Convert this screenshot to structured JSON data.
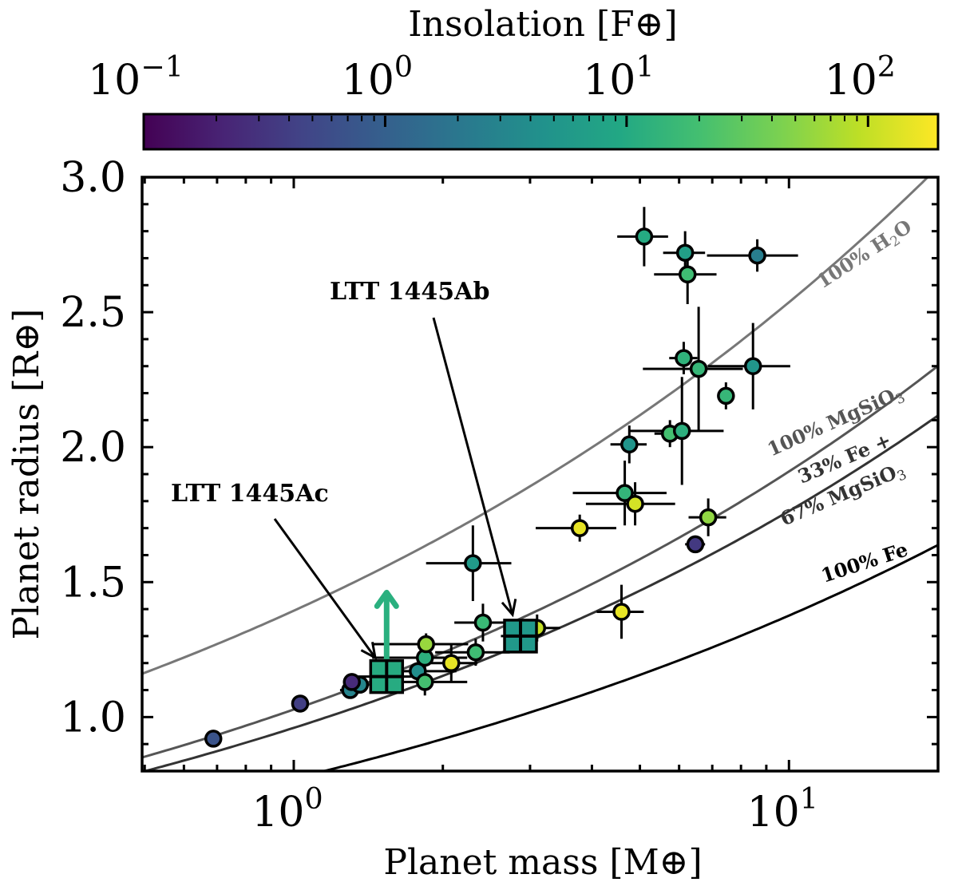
{
  "chart_data": {
    "type": "scatter",
    "xlabel": "Planet mass [M⊕]",
    "ylabel": "Planet radius [R⊕]",
    "xscale": "log",
    "xlim": [
      0.494,
      20.0
    ],
    "ylim": [
      0.8,
      3.0
    ],
    "x_ticks": [
      {
        "value": 1,
        "label_base": "10",
        "label_exp": "0"
      },
      {
        "value": 10,
        "label_base": "10",
        "label_exp": "1"
      }
    ],
    "y_ticks": [
      {
        "value": 1.0,
        "label": "1.0"
      },
      {
        "value": 1.5,
        "label": "1.5"
      },
      {
        "value": 2.0,
        "label": "2.0"
      },
      {
        "value": 2.5,
        "label": "2.5"
      },
      {
        "value": 3.0,
        "label": "3.0"
      }
    ],
    "colorbar": {
      "label": "Insolation [F⊕]",
      "scale": "log",
      "colormap": "viridis",
      "range": [
        0.1,
        195
      ],
      "ticks": [
        {
          "value": 0.1,
          "label_base": "10",
          "label_exp": "−1"
        },
        {
          "value": 1,
          "label_base": "10",
          "label_exp": "0"
        },
        {
          "value": 10,
          "label_base": "10",
          "label_exp": "1"
        },
        {
          "value": 100,
          "label_base": "10",
          "label_exp": "2"
        }
      ]
    },
    "composition_curves": [
      {
        "name": "100% H2O",
        "label": "100% H",
        "label_sub": "2",
        "label_tail": "O",
        "a": 1.394,
        "b": 0.26,
        "color": "#777777"
      },
      {
        "name": "100% MgSiO3",
        "label": "100% MgSiO",
        "label_sub": "3",
        "label_tail": "",
        "a": 1.028,
        "b": 0.269,
        "color": "#555555"
      },
      {
        "name": "33% Fe + 67% MgSiO3",
        "label": "33% Fe +",
        "label2": "67% MgSiO",
        "label2_sub": "3",
        "a": 0.96,
        "b": 0.264,
        "color": "#333333"
      },
      {
        "name": "100% Fe",
        "label": "100% Fe",
        "a": 0.772,
        "b": 0.251,
        "color": "#000000"
      }
    ],
    "points": [
      {
        "mass": 0.688,
        "radius": 0.92,
        "insolation": 0.7
      },
      {
        "mass": 1.03,
        "radius": 1.05,
        "insolation": 0.4
      },
      {
        "mass": 1.3,
        "radius": 1.1,
        "insolation": 3.0,
        "mass_err": 0.06,
        "radius_err": 0.02
      },
      {
        "mass": 1.36,
        "radius": 1.12,
        "insolation": 3.2,
        "mass_err": 0.06,
        "radius_err": 0.02
      },
      {
        "mass": 1.31,
        "radius": 1.13,
        "insolation": 0.25,
        "mass_err": 0.05,
        "radius_err": 0.02
      },
      {
        "mass": 1.78,
        "radius": 1.17,
        "insolation": 4.0,
        "mass_err": 0.35,
        "radius_err": 0.03
      },
      {
        "mass": 1.84,
        "radius": 1.22,
        "insolation": 12.0,
        "mass_err": 0.4,
        "radius_err": 0.04
      },
      {
        "mass": 1.85,
        "radius": 1.27,
        "insolation": 60.0,
        "mass_err": 0.4,
        "radius_err": 0.04
      },
      {
        "mass": 1.84,
        "radius": 1.13,
        "insolation": 20.0,
        "mass_err": 0.4,
        "radius_err": 0.05
      },
      {
        "mass": 2.08,
        "radius": 1.2,
        "insolation": 150.0,
        "mass_err": 0.27,
        "radius_err": 0.07
      },
      {
        "mass": 2.33,
        "radius": 1.24,
        "insolation": 18.0,
        "mass_err": 0.4,
        "radius_err": 0.05
      },
      {
        "mass": 2.41,
        "radius": 1.35,
        "insolation": 16.0,
        "mass_err": 0.3,
        "radius_err": 0.07
      },
      {
        "mass": 2.3,
        "radius": 1.57,
        "insolation": 6.0,
        "mass_err": 0.45,
        "radius_err": 0.14
      },
      {
        "mass": 3.1,
        "radius": 1.33,
        "insolation": 100.0,
        "mass_err": 0.35,
        "radius_err": 0.05
      },
      {
        "mass": 3.78,
        "radius": 1.7,
        "insolation": 150.0,
        "mass_err": 0.7,
        "radius_err": 0.05
      },
      {
        "mass": 4.59,
        "radius": 1.39,
        "insolation": 150.0,
        "mass_err": 0.5,
        "radius_err": 0.1
      },
      {
        "mass": 4.66,
        "radius": 1.83,
        "insolation": 14.0,
        "mass_err": 1.0,
        "radius_err": 0.12
      },
      {
        "mass": 4.89,
        "radius": 1.79,
        "insolation": 120.0,
        "mass_err": 1.0,
        "radius_err": 0.08
      },
      {
        "mass": 4.76,
        "radius": 2.01,
        "insolation": 5.0,
        "mass_err": 0.4,
        "radius_err": 0.07
      },
      {
        "mass": 5.1,
        "radius": 2.78,
        "insolation": 10.0,
        "mass_err": 0.6,
        "radius_err": 0.11
      },
      {
        "mass": 5.75,
        "radius": 2.05,
        "insolation": 20.0,
        "mass_err": 0.4,
        "radius_err": 0.05
      },
      {
        "mass": 6.08,
        "radius": 2.06,
        "insolation": 12.0,
        "mass_err": 1.3,
        "radius_err": 0.2
      },
      {
        "mass": 6.13,
        "radius": 2.33,
        "insolation": 13.0,
        "mass_err": 0.4,
        "radius_err": 0.06
      },
      {
        "mass": 6.57,
        "radius": 2.29,
        "insolation": 15.0,
        "mass_err": 1.5,
        "radius_err": 0.23
      },
      {
        "mass": 7.46,
        "radius": 2.19,
        "insolation": 15.0,
        "mass_err": 0.1,
        "radius_err": 0.05
      },
      {
        "mass": 8.46,
        "radius": 2.3,
        "insolation": 5.0,
        "mass_err": 1.6,
        "radius_err": 0.16
      },
      {
        "mass": 6.17,
        "radius": 2.72,
        "insolation": 7.0,
        "mass_err": 0.6,
        "radius_err": 0.08
      },
      {
        "mass": 6.24,
        "radius": 2.64,
        "insolation": 18.0,
        "mass_err": 0.9,
        "radius_err": 0.11
      },
      {
        "mass": 8.63,
        "radius": 2.71,
        "insolation": 2.5,
        "mass_err": 1.8,
        "radius_err": 0.06
      },
      {
        "mass": 6.87,
        "radius": 1.74,
        "insolation": 55.0,
        "mass_err": 0.6,
        "radius_err": 0.07
      },
      {
        "mass": 6.47,
        "radius": 1.64,
        "insolation": 0.35,
        "mass_err": 0.3,
        "radius_err": 0.03
      }
    ],
    "highlighted_planets": [
      {
        "name": "LTT 1445Ac",
        "mass": 1.54,
        "radius": 1.15,
        "insolation": 10.5,
        "mass_err": 0.2,
        "radius_err": 0.06,
        "lower_limit_arrow_to": 1.47,
        "arrow_color": "#2ab07f",
        "label": "LTT 1445Ac"
      },
      {
        "name": "LTT 1445Ab",
        "mass": 2.87,
        "radius": 1.3,
        "insolation": 5.5,
        "mass_err": 0.25,
        "radius_err": 0.06,
        "label": "LTT 1445Ab"
      }
    ]
  }
}
